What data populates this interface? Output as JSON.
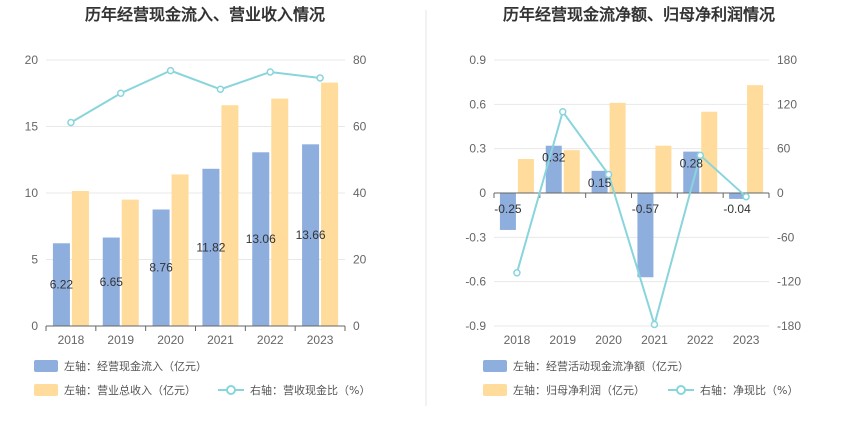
{
  "chart_data": [
    {
      "type": "bar",
      "title": "历年经营现金流入、营业收入情况",
      "categories": [
        "2018",
        "2019",
        "2020",
        "2021",
        "2022",
        "2023"
      ],
      "series": [
        {
          "name": "左轴：经营现金流入（亿元）",
          "type": "bar",
          "axis": "left",
          "color": "#8eaede",
          "values": [
            6.22,
            6.65,
            8.76,
            11.82,
            13.06,
            13.66
          ],
          "labels": [
            "6.22",
            "6.65",
            "8.76",
            "11.82",
            "13.06",
            "13.66"
          ]
        },
        {
          "name": "左轴：营业总收入（亿元）",
          "type": "bar",
          "axis": "left",
          "color": "#ffdc9c",
          "values": [
            10.15,
            9.5,
            11.4,
            16.6,
            17.1,
            18.3
          ]
        },
        {
          "name": "右轴：营收现金比（%）",
          "type": "line",
          "axis": "right",
          "color": "#88d5dc",
          "values": [
            61.2,
            70.0,
            76.8,
            71.2,
            76.4,
            74.6
          ]
        }
      ],
      "y_left": {
        "min": 0,
        "max": 20,
        "ticks": [
          "0",
          "5",
          "10",
          "15",
          "20"
        ]
      },
      "y_right": {
        "min": 0,
        "max": 80,
        "ticks": [
          "0",
          "20",
          "40",
          "60",
          "80"
        ]
      },
      "grid": true,
      "legend_position": "bottom-left"
    },
    {
      "type": "bar",
      "title": "历年经营现金流净额、归母净利润情况",
      "categories": [
        "2018",
        "2019",
        "2020",
        "2021",
        "2022",
        "2023"
      ],
      "series": [
        {
          "name": "左轴：经营活动现金流净额（亿元）",
          "type": "bar",
          "axis": "left",
          "color": "#8eaede",
          "values": [
            -0.25,
            0.32,
            0.15,
            -0.57,
            0.28,
            -0.04
          ],
          "labels": [
            "-0.25",
            "0.32",
            "0.15",
            "-0.57",
            "0.28",
            "-0.04"
          ]
        },
        {
          "name": "左轴：归母净利润（亿元）",
          "type": "bar",
          "axis": "left",
          "color": "#ffdc9c",
          "values": [
            0.23,
            0.29,
            0.61,
            0.32,
            0.55,
            0.73
          ]
        },
        {
          "name": "右轴：净现比（%）",
          "type": "line",
          "axis": "right",
          "color": "#88d5dc",
          "values": [
            -108,
            110,
            25,
            -178,
            51,
            -5
          ]
        }
      ],
      "y_left": {
        "min": -0.9,
        "max": 0.9,
        "ticks": [
          "-0.9",
          "-0.6",
          "-0.3",
          "0",
          "0.3",
          "0.6",
          "0.9"
        ]
      },
      "y_right": {
        "min": -180,
        "max": 180,
        "ticks": [
          "-180",
          "-120",
          "-60",
          "0",
          "60",
          "120",
          "180"
        ]
      },
      "grid": true,
      "legend_position": "bottom-left"
    }
  ]
}
